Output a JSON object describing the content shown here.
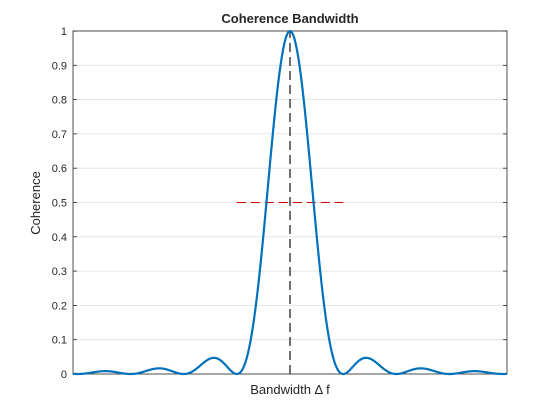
{
  "chart_data": {
    "type": "line",
    "title": "Coherence Bandwidth",
    "xlabel": "Bandwidth Δ f",
    "ylabel": "Coherence",
    "xlim": [
      -4.08,
      4.08
    ],
    "ylim": [
      0,
      1
    ],
    "yticks": [
      0,
      0.1,
      0.2,
      0.3,
      0.4,
      0.5,
      0.6,
      0.7,
      0.8,
      0.9,
      1
    ],
    "ytick_labels": [
      "0",
      "0.1",
      "0.2",
      "0.3",
      "0.4",
      "0.5",
      "0.6",
      "0.7",
      "0.8",
      "0.9",
      "1"
    ],
    "xticks_visible": false,
    "grid": "horizontal",
    "series": [
      {
        "values_function": "|sin(pi x)/(pi x)|^2",
        "x": [
          -4,
          -3.5,
          -3,
          -2.5,
          -2,
          -1.5,
          -1,
          -0.8,
          -0.6,
          -0.4,
          -0.2,
          0,
          0.2,
          0.4,
          0.6,
          0.8,
          1,
          1.5,
          2,
          2.5,
          3,
          3.5,
          4
        ],
        "y": [
          0,
          0.0033,
          0,
          0.0162,
          0,
          0.045,
          0,
          0.0547,
          0.2546,
          0.5728,
          0.8751,
          1,
          0.8751,
          0.5728,
          0.2546,
          0.0547,
          0,
          0.045,
          0,
          0.0162,
          0,
          0.0033,
          0
        ],
        "color": "#0072BD",
        "style": "solid"
      }
    ],
    "reference_lines": [
      {
        "orientation": "vertical",
        "x": 0,
        "y_range": [
          0,
          1
        ],
        "color": "#404040",
        "style": "dashed"
      },
      {
        "orientation": "horizontal",
        "y": 0.5,
        "x_range": [
          -1,
          1
        ],
        "color": "#D00000",
        "style": "dashed"
      }
    ]
  }
}
